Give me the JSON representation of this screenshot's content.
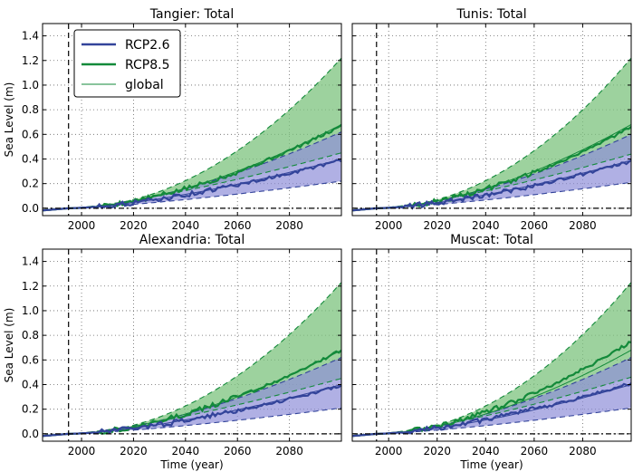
{
  "colors": {
    "rcp26": "#33449a",
    "rcp85": "#138a3a",
    "rcp26_fill": "#8f8ed8",
    "rcp85_fill": "#7cc37e"
  },
  "legend": {
    "placement": "upper-left of first panel",
    "entries": [
      {
        "label": "RCP2.6",
        "color_key": "rcp26",
        "style": "thick"
      },
      {
        "label": "RCP8.5",
        "color_key": "rcp85",
        "style": "thick"
      },
      {
        "label": "global",
        "color_key": "rcp85",
        "style": "thin"
      }
    ]
  },
  "chart_data": [
    {
      "type": "line",
      "title": "Tangier: Total",
      "xlabel": "",
      "ylabel": "Sea Level (m)",
      "xlim": [
        1985,
        2100
      ],
      "ylim": [
        -0.06,
        1.5
      ],
      "xticks": [
        2000,
        2020,
        2040,
        2060,
        2080
      ],
      "yticks": [
        0.0,
        0.2,
        0.4,
        0.6,
        0.8,
        1.0,
        1.2,
        1.4
      ],
      "grid": true,
      "reference_x": 1995,
      "reference_y": 0,
      "series": [
        {
          "name": "RCP2.6",
          "end_value": 0.39,
          "band_upper_end": 0.62,
          "band_lower_end": 0.22,
          "global_end": 0.4
        },
        {
          "name": "RCP8.5",
          "end_value": 0.67,
          "band_upper_end": 1.22,
          "band_lower_end": 0.45,
          "global_end": 0.68
        }
      ]
    },
    {
      "type": "line",
      "title": "Tunis: Total",
      "xlabel": "",
      "ylabel": "",
      "xlim": [
        1985,
        2100
      ],
      "ylim": [
        -0.06,
        1.5
      ],
      "xticks": [
        2000,
        2020,
        2040,
        2060,
        2080
      ],
      "yticks": [
        0.0,
        0.2,
        0.4,
        0.6,
        0.8,
        1.0,
        1.2,
        1.4
      ],
      "grid": true,
      "reference_x": 1995,
      "reference_y": 0,
      "series": [
        {
          "name": "RCP2.6",
          "end_value": 0.38,
          "band_upper_end": 0.6,
          "band_lower_end": 0.21,
          "global_end": 0.39
        },
        {
          "name": "RCP8.5",
          "end_value": 0.66,
          "band_upper_end": 1.22,
          "band_lower_end": 0.44,
          "global_end": 0.68
        }
      ]
    },
    {
      "type": "line",
      "title": "Alexandria: Total",
      "xlabel": "Time (year)",
      "ylabel": "Sea Level (m)",
      "xlim": [
        1985,
        2100
      ],
      "ylim": [
        -0.06,
        1.5
      ],
      "xticks": [
        2000,
        2020,
        2040,
        2060,
        2080
      ],
      "yticks": [
        0.0,
        0.2,
        0.4,
        0.6,
        0.8,
        1.0,
        1.2,
        1.4
      ],
      "grid": true,
      "reference_x": 1995,
      "reference_y": 0,
      "series": [
        {
          "name": "RCP2.6",
          "end_value": 0.39,
          "band_upper_end": 0.62,
          "band_lower_end": 0.21,
          "global_end": 0.4
        },
        {
          "name": "RCP8.5",
          "end_value": 0.68,
          "band_upper_end": 1.23,
          "band_lower_end": 0.45,
          "global_end": 0.68
        }
      ]
    },
    {
      "type": "line",
      "title": "Muscat: Total",
      "xlabel": "Time (year)",
      "ylabel": "",
      "xlim": [
        1985,
        2100
      ],
      "ylim": [
        -0.06,
        1.5
      ],
      "xticks": [
        2000,
        2020,
        2040,
        2060,
        2080
      ],
      "yticks": [
        0.0,
        0.2,
        0.4,
        0.6,
        0.8,
        1.0,
        1.2,
        1.4
      ],
      "grid": true,
      "reference_x": 1995,
      "reference_y": 0,
      "series": [
        {
          "name": "RCP2.6",
          "end_value": 0.41,
          "band_upper_end": 0.62,
          "band_lower_end": 0.21,
          "global_end": 0.4
        },
        {
          "name": "RCP8.5",
          "end_value": 0.75,
          "band_upper_end": 1.23,
          "band_lower_end": 0.46,
          "global_end": 0.68
        }
      ]
    }
  ]
}
